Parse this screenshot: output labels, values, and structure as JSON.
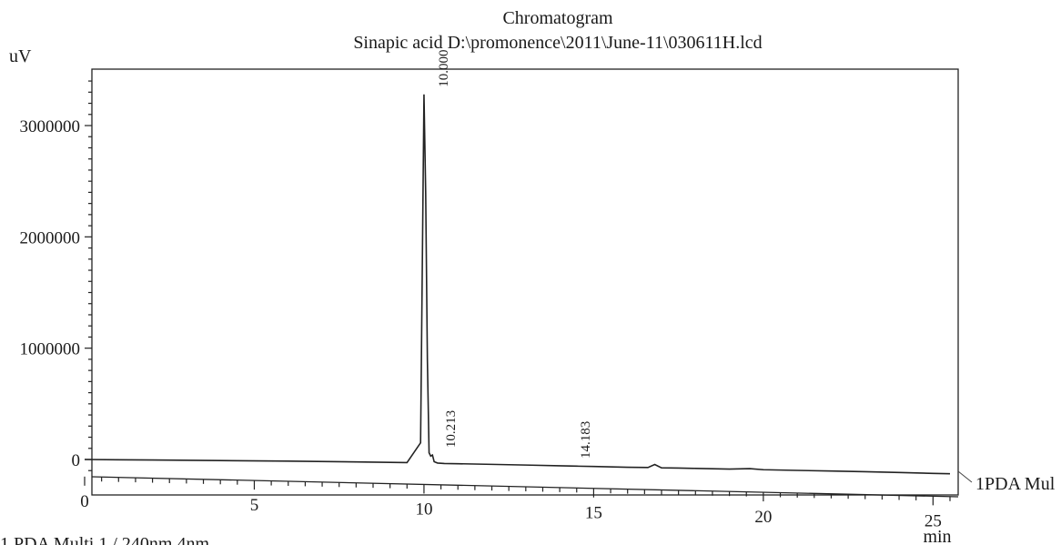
{
  "chart_data": {
    "type": "line",
    "title": "Chromatogram",
    "subtitle": "Sinapic acid D:\\promonence\\2011\\June-11\\030611H.lcd",
    "ylabel": "uV",
    "xlabel": "min",
    "xlim": [
      0,
      25.5
    ],
    "ylim": [
      -150000,
      3500000
    ],
    "x_ticks": [
      "0",
      "5",
      "10",
      "15",
      "20",
      "25"
    ],
    "y_ticks": [
      "0",
      "1000000",
      "2000000",
      "3000000"
    ],
    "x_tick_values": [
      0,
      5,
      10,
      15,
      20,
      25
    ],
    "y_tick_values": [
      0,
      1000000,
      2000000,
      3000000
    ],
    "series": [
      {
        "name": "1PDA Mul",
        "x": [
          0,
          2,
          4,
          6,
          8,
          9.5,
          9.9,
          10.0,
          10.05,
          10.1,
          10.15,
          10.2,
          10.25,
          10.3,
          10.4,
          10.6,
          11,
          12,
          13,
          14,
          14.5,
          15,
          16,
          16.6,
          16.8,
          17.0,
          17.5,
          18,
          19,
          19.6,
          20,
          21,
          22,
          23,
          24,
          25,
          25.5
        ],
        "y": [
          0,
          -5000,
          -10000,
          -15000,
          -22000,
          -28000,
          150000,
          3280000,
          2400000,
          900000,
          60000,
          30000,
          40000,
          -20000,
          -32000,
          -36000,
          -38000,
          -44000,
          -50000,
          -57000,
          -60000,
          -63000,
          -70000,
          -72000,
          -45000,
          -75000,
          -77000,
          -80000,
          -86000,
          -82000,
          -92000,
          -98000,
          -104000,
          -110000,
          -117000,
          -125000,
          -128000
        ]
      }
    ],
    "peak_labels": [
      {
        "text": "10.000",
        "x": 10.0,
        "y": 3280000
      },
      {
        "text": "10.213",
        "x": 10.213,
        "y": 40000
      },
      {
        "text": "14.183",
        "x": 14.183,
        "y": -57000
      }
    ],
    "footer": "1   PDA Multi 1 / 240nm 4nm",
    "grid": false
  }
}
